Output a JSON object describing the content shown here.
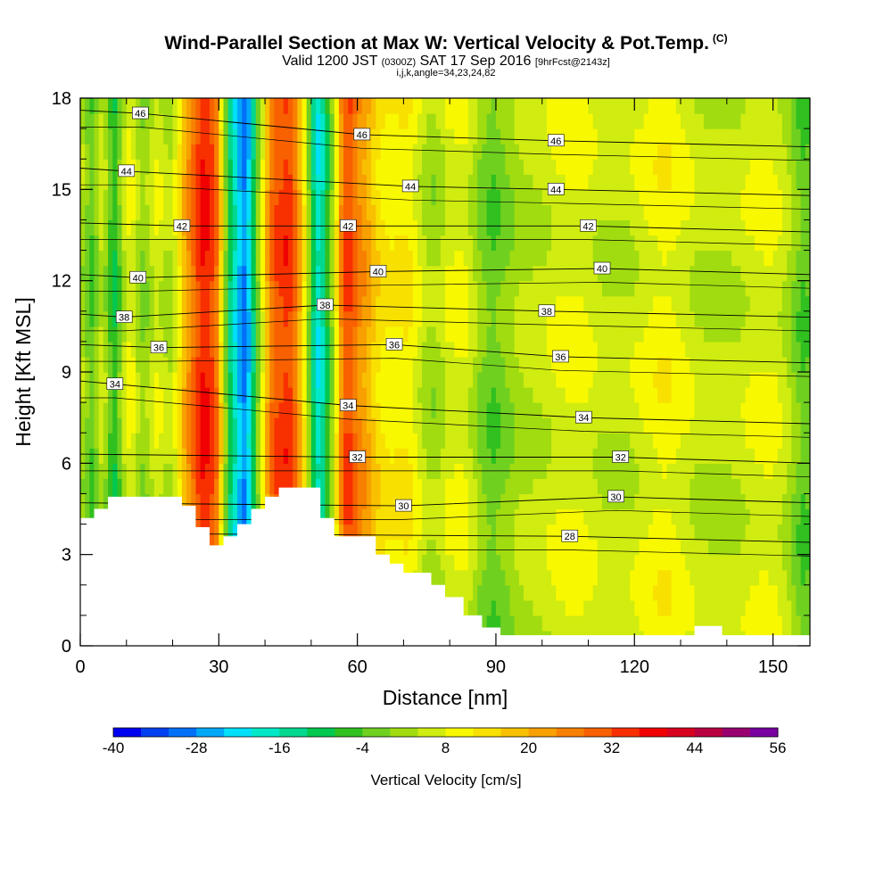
{
  "chart_data": {
    "type": "heatmap",
    "title": "Wind-Parallel Section at Max W: Vertical Velocity & Pot.Temp.",
    "copyright_mark": "(C)",
    "subtitle_main": "Valid 1200 JST",
    "subtitle_utc": "(0300Z)",
    "subtitle_date": "SAT 17 Sep 2016",
    "subtitle_fcst": "[9hrFcst@2143z]",
    "subtitle2": "i,j,k,angle=34,23,24,82",
    "xlabel": "Distance [nm]",
    "ylabel": "Height [Kft MSL]",
    "xlim": [
      0,
      158
    ],
    "ylim": [
      0,
      18
    ],
    "x_ticks": [
      "0",
      "30",
      "60",
      "90",
      "120",
      "150"
    ],
    "y_ticks": [
      "0",
      "3",
      "6",
      "9",
      "12",
      "15",
      "18"
    ],
    "colorbar": {
      "label": "Vertical Velocity [cm/s]",
      "min": -40,
      "max": 56,
      "step": 4,
      "tick_labels": [
        "-40",
        "-28",
        "-16",
        "-4",
        "8",
        "20",
        "32",
        "44",
        "56"
      ],
      "colors": [
        "#0000f0",
        "#0040f0",
        "#0070f8",
        "#00a8f8",
        "#00e0f8",
        "#00e8c8",
        "#00d890",
        "#00c850",
        "#30c020",
        "#70d020",
        "#a0dc10",
        "#d0ec10",
        "#f8f800",
        "#f8e000",
        "#f8c000",
        "#f8a000",
        "#f88000",
        "#f86000",
        "#f83000",
        "#f00000",
        "#d80020",
        "#b80040",
        "#980070",
        "#7800a0"
      ]
    },
    "theta_contour_labels": [
      {
        "x": 13,
        "h": 17.5,
        "v": "46"
      },
      {
        "x": 10,
        "h": 15.6,
        "v": "44"
      },
      {
        "x": 22,
        "h": 13.8,
        "v": "42"
      },
      {
        "x": 12.5,
        "h": 12.1,
        "v": "40"
      },
      {
        "x": 9.5,
        "h": 10.8,
        "v": "38"
      },
      {
        "x": 17,
        "h": 9.8,
        "v": "36"
      },
      {
        "x": 7.5,
        "h": 8.6,
        "v": "34"
      },
      {
        "x": 61,
        "h": 16.8,
        "v": "46"
      },
      {
        "x": 71.5,
        "h": 15.1,
        "v": "44"
      },
      {
        "x": 58,
        "h": 13.8,
        "v": "42"
      },
      {
        "x": 64.5,
        "h": 12.3,
        "v": "40"
      },
      {
        "x": 53,
        "h": 11.2,
        "v": "38"
      },
      {
        "x": 68,
        "h": 9.9,
        "v": "36"
      },
      {
        "x": 58,
        "h": 7.9,
        "v": "34"
      },
      {
        "x": 60,
        "h": 6.2,
        "v": "32"
      },
      {
        "x": 70,
        "h": 4.6,
        "v": "30"
      },
      {
        "x": 103,
        "h": 16.6,
        "v": "46"
      },
      {
        "x": 103,
        "h": 15.0,
        "v": "44"
      },
      {
        "x": 110,
        "h": 13.8,
        "v": "42"
      },
      {
        "x": 113,
        "h": 12.4,
        "v": "40"
      },
      {
        "x": 101,
        "h": 11.0,
        "v": "38"
      },
      {
        "x": 104,
        "h": 9.5,
        "v": "36"
      },
      {
        "x": 109,
        "h": 7.5,
        "v": "34"
      },
      {
        "x": 117,
        "h": 6.2,
        "v": "32"
      },
      {
        "x": 116,
        "h": 4.9,
        "v": "30"
      },
      {
        "x": 106,
        "h": 3.6,
        "v": "28"
      }
    ],
    "terrain": [
      [
        0,
        4.2
      ],
      [
        3,
        4.2
      ],
      [
        3,
        4.5
      ],
      [
        6,
        4.5
      ],
      [
        6,
        4.9
      ],
      [
        22,
        4.9
      ],
      [
        22,
        4.6
      ],
      [
        25,
        4.6
      ],
      [
        25,
        3.9
      ],
      [
        28,
        3.9
      ],
      [
        28,
        3.3
      ],
      [
        31,
        3.3
      ],
      [
        31,
        3.6
      ],
      [
        34,
        3.6
      ],
      [
        34,
        4.0
      ],
      [
        37,
        4.0
      ],
      [
        37,
        4.5
      ],
      [
        40,
        4.5
      ],
      [
        40,
        4.9
      ],
      [
        43,
        4.9
      ],
      [
        43,
        5.2
      ],
      [
        52,
        5.2
      ],
      [
        52,
        4.2
      ],
      [
        55,
        4.2
      ],
      [
        55,
        3.6
      ],
      [
        64,
        3.6
      ],
      [
        64,
        3.0
      ],
      [
        67,
        3.0
      ],
      [
        67,
        2.7
      ],
      [
        70,
        2.7
      ],
      [
        70,
        2.4
      ],
      [
        76,
        2.4
      ],
      [
        76,
        2.0
      ],
      [
        79,
        2.0
      ],
      [
        79,
        1.6
      ],
      [
        83,
        1.6
      ],
      [
        83,
        1.0
      ],
      [
        87,
        1.0
      ],
      [
        87,
        0.6
      ],
      [
        91,
        0.6
      ],
      [
        91,
        0.35
      ],
      [
        133,
        0.35
      ],
      [
        133,
        0.65
      ],
      [
        139,
        0.65
      ],
      [
        139,
        0.35
      ],
      [
        158,
        0.35
      ]
    ],
    "w_columns": [
      {
        "x": 0.5,
        "w": 1.0,
        "v": 0
      },
      {
        "x": 2.5,
        "w": 1.6,
        "v": -8
      },
      {
        "x": 4.5,
        "w": 1.4,
        "v": 4
      },
      {
        "x": 7.5,
        "w": 2.0,
        "v": -12
      },
      {
        "x": 10.5,
        "w": 2.5,
        "v": 6
      },
      {
        "x": 13.5,
        "w": 2.0,
        "v": -6
      },
      {
        "x": 16.5,
        "w": 2.5,
        "v": 4
      },
      {
        "x": 19.5,
        "w": 2.0,
        "v": -4
      },
      {
        "x": 22.5,
        "w": 2.5,
        "v": 10
      },
      {
        "x": 26.5,
        "w": 3.0,
        "v": 30
      },
      {
        "x": 29.5,
        "w": 1.8,
        "v": 14
      },
      {
        "x": 32.5,
        "w": 2.0,
        "v": -14
      },
      {
        "x": 35.5,
        "w": 2.0,
        "v": -30
      },
      {
        "x": 38.5,
        "w": 2.5,
        "v": -6
      },
      {
        "x": 41.5,
        "w": 2.5,
        "v": 20
      },
      {
        "x": 45.5,
        "w": 3.0,
        "v": 28
      },
      {
        "x": 48.5,
        "w": 2.0,
        "v": -2
      },
      {
        "x": 51.5,
        "w": 1.8,
        "v": -22
      },
      {
        "x": 54.5,
        "w": 2.0,
        "v": -8
      },
      {
        "x": 57.5,
        "w": 2.5,
        "v": 26
      },
      {
        "x": 61.5,
        "w": 3.0,
        "v": 16
      },
      {
        "x": 65.5,
        "w": 2.5,
        "v": 4
      },
      {
        "x": 70.5,
        "w": 4.0,
        "v": 8
      },
      {
        "x": 76.5,
        "w": 4.0,
        "v": -4
      },
      {
        "x": 82.5,
        "w": 4.5,
        "v": 8
      },
      {
        "x": 88.5,
        "w": 5.0,
        "v": -6
      },
      {
        "x": 96.5,
        "w": 6.0,
        "v": 2
      },
      {
        "x": 106.5,
        "w": 6.0,
        "v": 6
      },
      {
        "x": 116.5,
        "w": 6.0,
        "v": 2
      },
      {
        "x": 126.5,
        "w": 6.0,
        "v": 8
      },
      {
        "x": 137.5,
        "w": 6.0,
        "v": 2
      },
      {
        "x": 148.5,
        "w": 6.0,
        "v": 6
      },
      {
        "x": 156.5,
        "w": 3.0,
        "v": -6
      }
    ]
  }
}
